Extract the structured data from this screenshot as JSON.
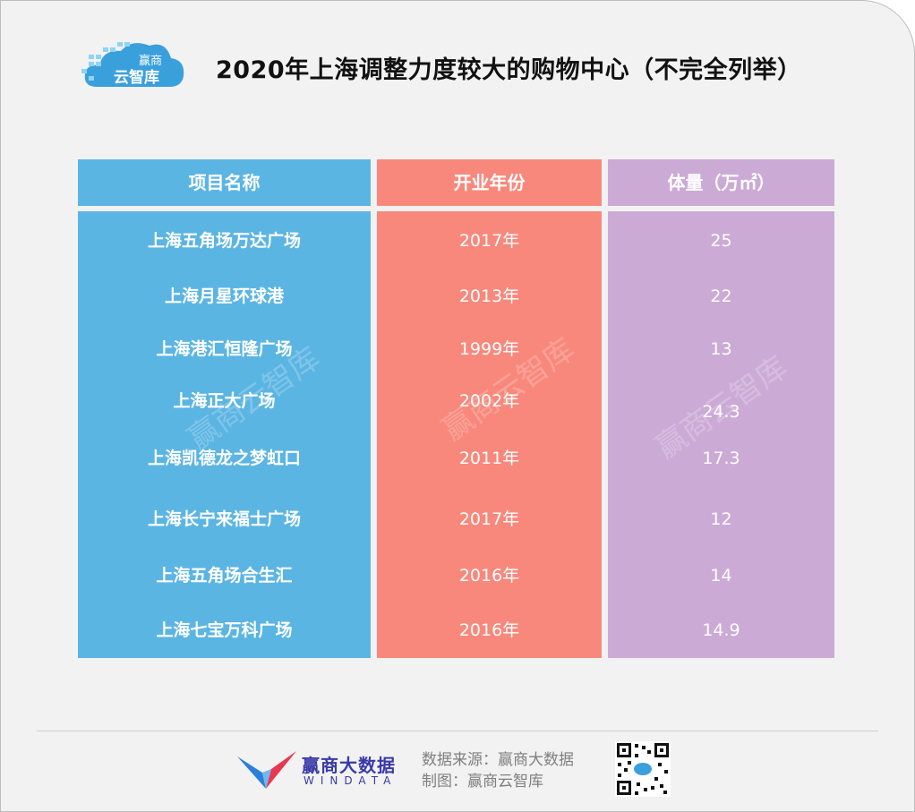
{
  "header": {
    "logo_line1": "赢商",
    "logo_line2": "云智库",
    "title": "2020年上海调整力度较大的购物中心（不完全列举）"
  },
  "table": {
    "columns": [
      "项目名称",
      "开业年份",
      "体量（万㎡）"
    ],
    "rows": [
      {
        "name": "上海五角场万达广场",
        "year": "2017年",
        "size": "25"
      },
      {
        "name": "上海月星环球港",
        "year": "2013年",
        "size": "22"
      },
      {
        "name": "上海港汇恒隆广场",
        "year": "1999年",
        "size": "13"
      },
      {
        "name": "上海正大广场",
        "year": "2002年",
        "size": "24.3"
      },
      {
        "name": "上海凯德龙之梦虹口",
        "year": "2011年",
        "size": "17.3"
      },
      {
        "name": "上海长宁来福士广场",
        "year": "2017年",
        "size": "12"
      },
      {
        "name": "上海五角场合生汇",
        "year": "2016年",
        "size": "14"
      },
      {
        "name": "上海七宝万科广场",
        "year": "2016年",
        "size": "14.9"
      }
    ],
    "watermark": "赢商云智库"
  },
  "footer": {
    "brand_cn": "赢商大数据",
    "brand_en": "WINDATA",
    "source": "数据来源：赢商大数据",
    "made_by": "制图：赢商云智库"
  },
  "colors": {
    "name_col": "#5bb5e3",
    "year_col": "#f9887c",
    "size_col": "#ccaad6"
  }
}
